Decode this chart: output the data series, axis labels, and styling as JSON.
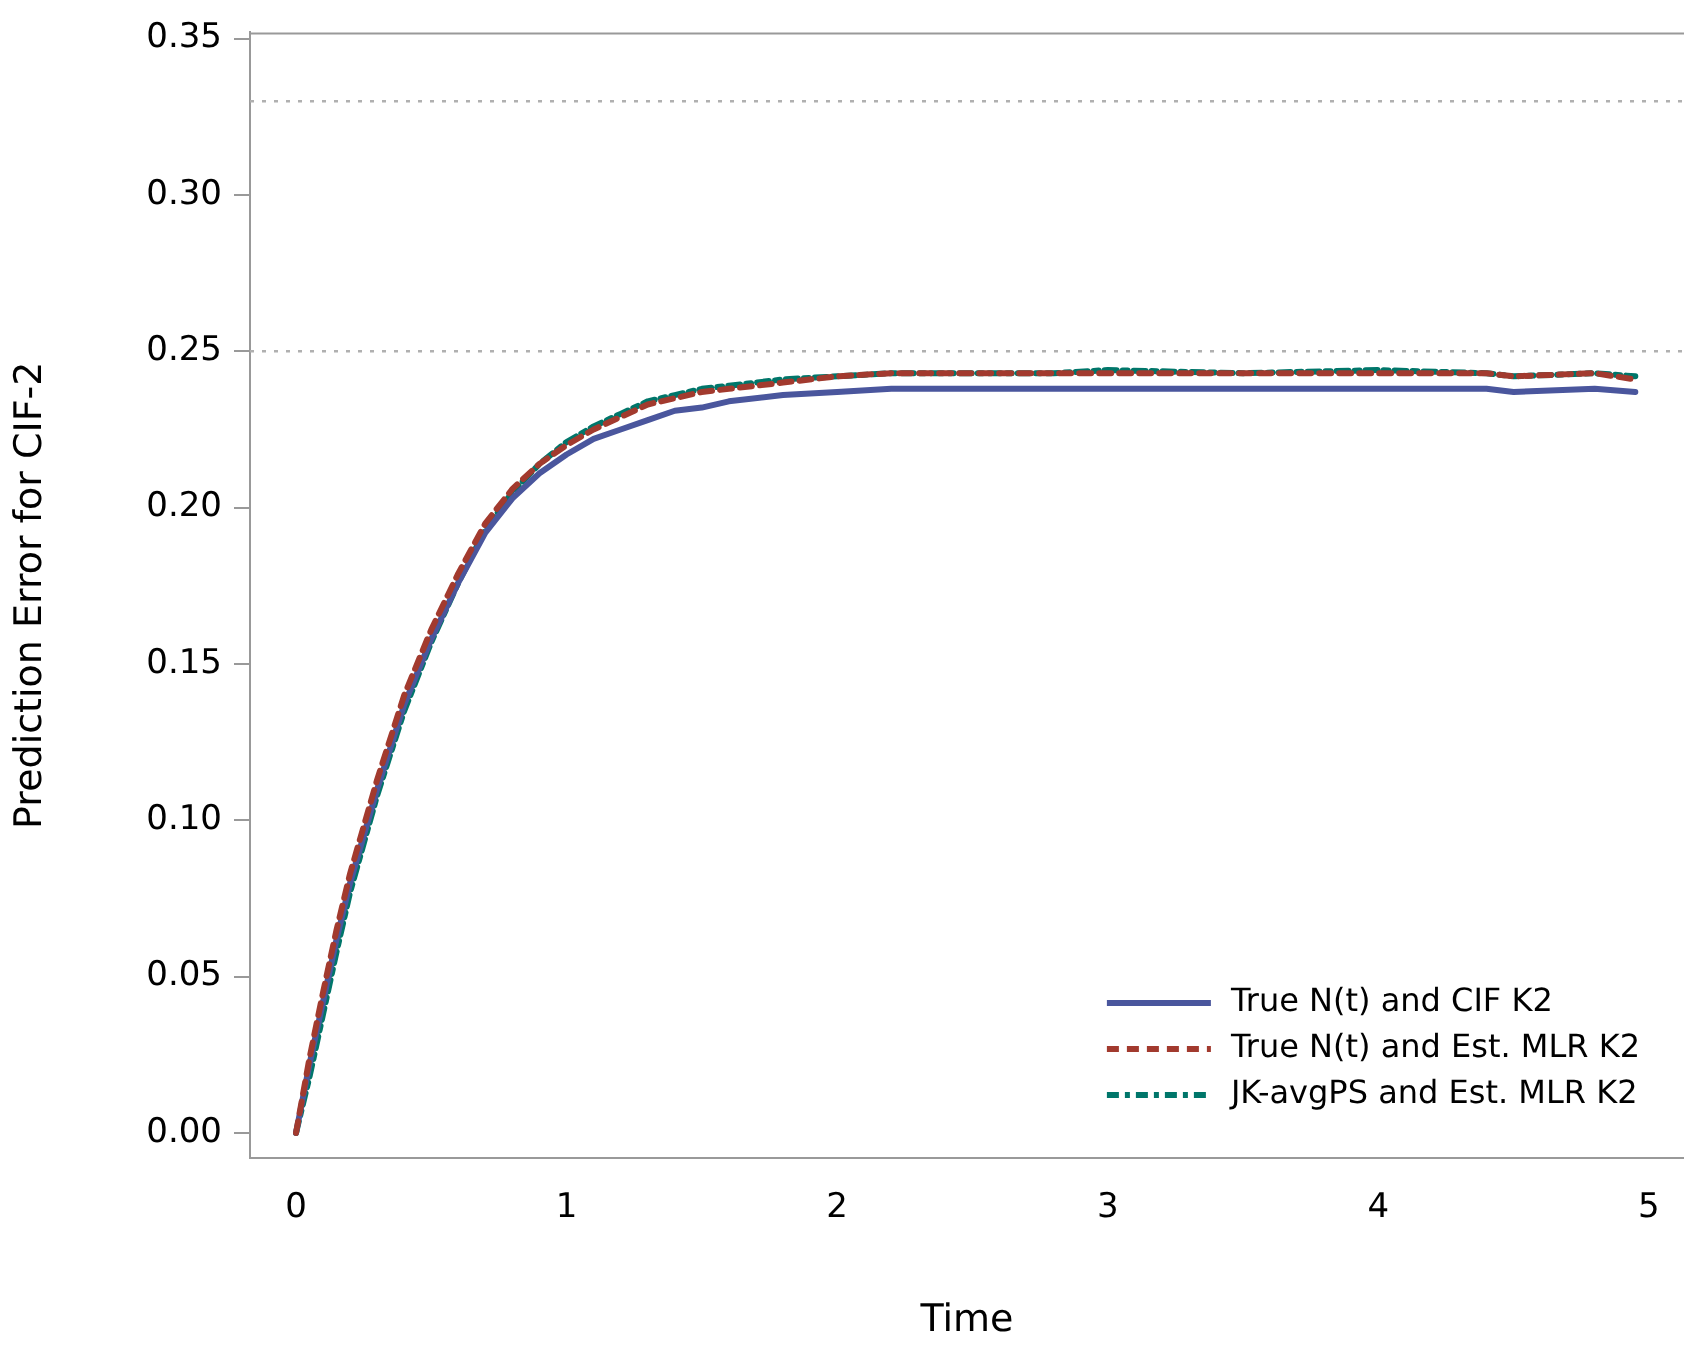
{
  "chart_data": {
    "type": "line",
    "xlabel": "Time",
    "ylabel": "Prediction Error for CIF-2",
    "xlim": [
      -0.17,
      5.13
    ],
    "xticks": [
      0,
      1,
      2,
      3,
      4,
      5
    ],
    "ylim": [
      -0.008,
      0.352
    ],
    "yticks": [
      {
        "value": 0,
        "label": "0.00"
      },
      {
        "value": 0.05,
        "label": "0.05"
      },
      {
        "value": 0.1,
        "label": "0.10"
      },
      {
        "value": 0.15,
        "label": "0.15"
      },
      {
        "value": 0.2,
        "label": "0.20"
      },
      {
        "value": 0.25,
        "label": "0.25"
      },
      {
        "value": 0.3,
        "label": "0.30"
      },
      {
        "value": 0.35,
        "label": "0.35"
      }
    ],
    "x": [
      0,
      0.05,
      0.1,
      0.15,
      0.2,
      0.3,
      0.4,
      0.5,
      0.6,
      0.7,
      0.8,
      0.9,
      1.0,
      1.1,
      1.2,
      1.3,
      1.4,
      1.5,
      1.6,
      1.8,
      2.0,
      2.2,
      2.5,
      2.8,
      3.0,
      3.5,
      4.0,
      4.4,
      4.5,
      4.8,
      4.95
    ],
    "series": [
      {
        "name": "True N(t) and CIF K2",
        "color": "#4a569d",
        "line_style": "solid",
        "values": [
          0,
          0.022,
          0.042,
          0.062,
          0.08,
          0.11,
          0.137,
          0.158,
          0.176,
          0.192,
          0.203,
          0.211,
          0.217,
          0.222,
          0.225,
          0.228,
          0.231,
          0.232,
          0.234,
          0.236,
          0.237,
          0.238,
          0.238,
          0.238,
          0.238,
          0.238,
          0.238,
          0.238,
          0.237,
          0.238,
          0.237
        ]
      },
      {
        "name": "True N(t) and Est. MLR K2",
        "color": "#a23a2e",
        "line_style": "dashed",
        "values": [
          0,
          0.024,
          0.045,
          0.065,
          0.083,
          0.113,
          0.14,
          0.161,
          0.179,
          0.195,
          0.206,
          0.214,
          0.22,
          0.225,
          0.229,
          0.233,
          0.235,
          0.237,
          0.238,
          0.24,
          0.242,
          0.243,
          0.243,
          0.243,
          0.243,
          0.243,
          0.243,
          0.243,
          0.242,
          0.243,
          0.241
        ]
      },
      {
        "name": "JK-avgPS and Est. MLR K2",
        "color": "#00766a",
        "line_style": "dotted",
        "values": [
          0,
          0.018,
          0.038,
          0.058,
          0.077,
          0.108,
          0.135,
          0.157,
          0.176,
          0.193,
          0.205,
          0.214,
          0.221,
          0.226,
          0.23,
          0.234,
          0.236,
          0.238,
          0.239,
          0.241,
          0.242,
          0.243,
          0.243,
          0.243,
          0.244,
          0.243,
          0.244,
          0.243,
          0.242,
          0.243,
          0.242
        ]
      }
    ],
    "ref_lines": [
      {
        "axis": "y",
        "value": 0.25,
        "color": "#b0b0b0",
        "line_style": "dotted"
      },
      {
        "axis": "y",
        "value": 0.33,
        "color": "#b0b0b0",
        "line_style": "dotted"
      }
    ],
    "legend": "bottom right",
    "grid": false,
    "marker": "none"
  }
}
